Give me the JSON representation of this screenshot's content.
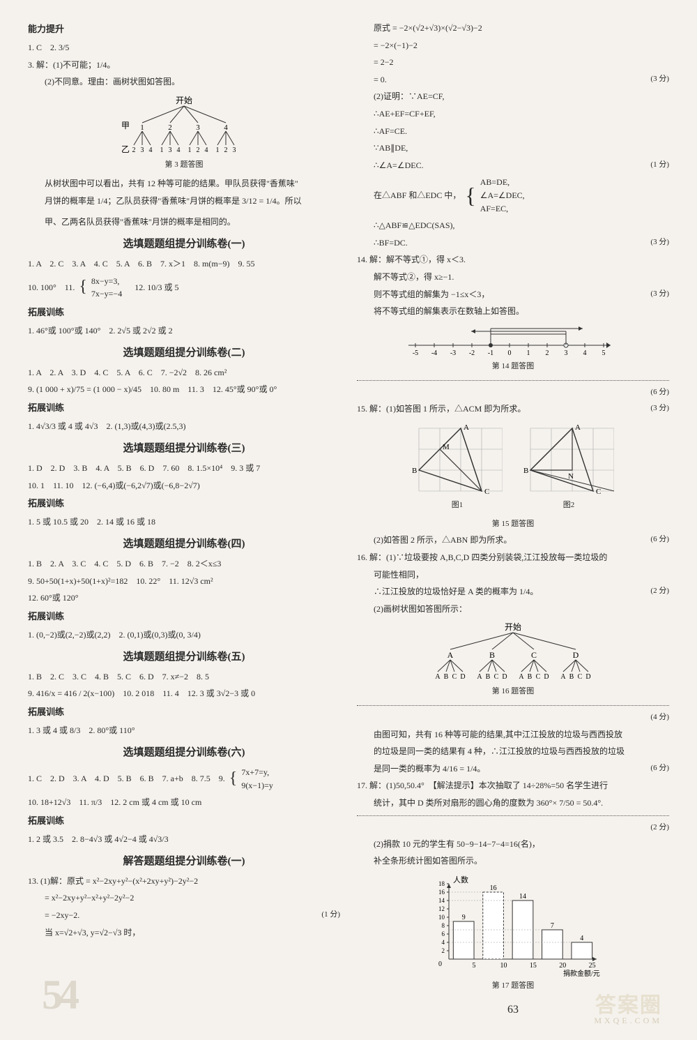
{
  "left": {
    "cap_heading": "能力提升",
    "l1": "1. C　2. 3/5",
    "l3": "3. 解：(1)不可能；1/4。",
    "l3b": "(2)不同意。理由：画树状图如答图。",
    "tree3_cap": "第 3 题答图",
    "tree3_top": "开始",
    "tree3_row1_label": "甲",
    "tree3_row1": [
      "1",
      "2",
      "3",
      "4"
    ],
    "tree3_row2_label": "乙",
    "tree3_row2": [
      "2",
      "3",
      "4",
      "1",
      "3",
      "4",
      "1",
      "2",
      "4",
      "1",
      "2",
      "3"
    ],
    "tree3_text1": "从树状图中可以看出，共有 12 种等可能的结果。甲队员获得\"香蕉味\"",
    "tree3_text2": "月饼的概率是 1/4；乙队员获得\"香蕉味\"月饼的概率是 3/12 = 1/4。所以",
    "tree3_text3": "甲、乙两名队员获得\"香蕉味\"月饼的概率是相同的。",
    "sec1_title": "选填题题组提分训练卷(一)",
    "s1l1": "1. A　2. C　3. A　4. C　5. A　6. B　7. x＞1　8. m(m−9)　9. 55",
    "s1l2_a": "10. 100°　11.",
    "s1l2_sys1": "8x−y=3,",
    "s1l2_sys2": "7x−y=−4",
    "s1l2_b": "　12. 10/3 或 5",
    "s1_ext": "拓展训练",
    "s1e1": "1. 46°或 100°或 140°　2. 2√5 或 2√2 或 2",
    "sec2_title": "选填题题组提分训练卷(二)",
    "s2l1": "1. A　2. A　3. D　4. C　5. A　6. C　7. −2√2　8. 26 cm²",
    "s2l2": "9. (1 000 + x)/75 = (1 000 − x)/45　10. 80 m　11. 3　12. 45°或 90°或 0°",
    "s2_ext": "拓展训练",
    "s2e1": "1. 4√3/3 或 4 或 4√3　2. (1,3)或(4,3)或(2.5,3)",
    "sec3_title": "选填题题组提分训练卷(三)",
    "s3l1": "1. D　2. D　3. B　4. A　5. B　6. D　7. 60　8. 1.5×10⁴　9. 3 或 7",
    "s3l2": "10. 1　11. 10　12. (−6,4)或(−6,2√7)或(−6,8−2√7)",
    "s3_ext": "拓展训练",
    "s3e1": "1. 5 或 10.5 或 20　2. 14 或 16 或 18",
    "sec4_title": "选填题题组提分训练卷(四)",
    "s4l1": "1. B　2. A　3. C　4. C　5. D　6. B　7. −2　8. 2＜x≤3",
    "s4l2": "9. 50+50(1+x)+50(1+x)²=182　10. 22°　11. 12√3 cm²",
    "s4l3": "12. 60°或 120°",
    "s4_ext": "拓展训练",
    "s4e1": "1. (0,−2)或(2,−2)或(2,2)　2. (0,1)或(0,3)或(0, 3/4)",
    "sec5_title": "选填题题组提分训练卷(五)",
    "s5l1": "1. B　2. C　3. C　4. B　5. C　6. D　7. x≠−2　8. 5",
    "s5l2": "9. 416/x = 416 / 2(x−100)　10. 2 018　11. 4　12. 3 或 3√2−3 或 0",
    "s5_ext": "拓展训练",
    "s5e1": "1. 3 或 4 或 8/3　2. 80°或 110°",
    "sec6_title": "选填题题组提分训练卷(六)",
    "s6l1_a": "1. C　2. D　3. A　4. D　5. B　6. B　7. a+b　8. 7.5　9.",
    "s6l1_sys1": "7x+7=y,",
    "s6l1_sys2": "9(x−1)=y",
    "s6l2": "10. 18+12√3　11. π/3　12. 2 cm 或 4 cm 或 10 cm",
    "s6_ext": "拓展训练",
    "s6e1": "1. 2 或 3.5　2. 8−4√3 或 4√2−4 或 4√3/3",
    "sec7_title": "解答题题组提分训练卷(一)",
    "s7l1": "13. (1)解：原式 = x²−2xy+y²−(x²+2xy+y²)−2y²−2",
    "s7l2": "= x²−2xy+y²−x²+y²−2y²−2",
    "s7l3": "= −2xy−2.",
    "s7l3_score": "(1 分)",
    "s7l4": "当 x=√2+√3, y=√2−√3 时，"
  },
  "right": {
    "r1": "原式 = −2×(√2+√3)×(√2−√3)−2",
    "r2": "= −2×(−1)−2",
    "r3": "= 2−2",
    "r4": "= 0.",
    "r4_score": "(3 分)",
    "r5": "(2)证明：∵AE=CF,",
    "r6": "∴AE+EF=CF+EF,",
    "r7": "∴AF=CE.",
    "r8": "∵AB∥DE,",
    "r9": "∴∠A=∠DEC.",
    "r9_score": "(1 分)",
    "r10_a": "在△ABF 和△EDC 中，",
    "r10_sys1": "AB=DE,",
    "r10_sys2": "∠A=∠DEC,",
    "r10_sys3": "AF=EC,",
    "r11": "∴△ABF≌△EDC(SAS),",
    "r12": "∴BF=DC.",
    "r12_score": "(3 分)",
    "r13": "14. 解：解不等式①，得 x＜3.",
    "r14": "解不等式②，得 x≥−1.",
    "r15": "则不等式组的解集为 −1≤x＜3，",
    "r15_score": "(3 分)",
    "r16": "将不等式组的解集表示在数轴上如答图。",
    "numline_ticks": [
      "-5",
      "-4",
      "-3",
      "-2",
      "-1",
      "0",
      "1",
      "2",
      "3",
      "4",
      "5"
    ],
    "numline_cap": "第 14 题答图",
    "r16_score": "(6 分)",
    "r17": "15. 解：(1)如答图 1 所示，△ACM 即为所求。",
    "r17_score": "(3 分)",
    "fig15_labels": {
      "A": "A",
      "B": "B",
      "C": "C",
      "M": "M",
      "N": "N"
    },
    "fig15_cap1": "图1",
    "fig15_cap2": "图2",
    "fig15_cap": "第 15 题答图",
    "r18": "(2)如答图 2 所示，△ABN 即为所求。",
    "r18_score": "(6 分)",
    "r19": "16. 解：(1)∵垃圾要按 A,B,C,D 四类分别装袋,江江投放每一类垃圾的",
    "r20": "可能性相同，",
    "r21": "∴江江投放的垃圾恰好是 A 类的概率为 1/4。",
    "r21_score": "(2 分)",
    "r22": "(2)画树状图如答图所示：",
    "tree16_top": "开始",
    "tree16_row1": [
      "A",
      "B",
      "C",
      "D"
    ],
    "tree16_row2": [
      "A",
      "B",
      "C",
      "D",
      "A",
      "B",
      "C",
      "D",
      "A",
      "B",
      "C",
      "D",
      "A",
      "B",
      "C",
      "D"
    ],
    "tree16_cap": "第 16 题答图",
    "r22_score": "(4 分)",
    "r23": "由图可知，共有 16 种等可能的结果,其中江江投放的垃圾与西西投放",
    "r24": "的垃圾是同一类的结果有 4 种，∴江江投放的垃圾与西西投放的垃圾",
    "r25": "是同一类的概率为 4/16 = 1/4。",
    "r25_score": "(6 分)",
    "r26": "17. 解：(1)50,50.4°　【解法提示】本次抽取了 14÷28%=50 名学生进行",
    "r27": "统计，其中 D 类所对扇形的圆心角的度数为 360°× 7/50 = 50.4°.",
    "r27_score": "(2 分)",
    "r28": "(2)捐款 10 元的学生有 50−9−14−7−4=16(名)，",
    "r29": "补全条形统计图如答图所示。",
    "bar17": {
      "type": "bar",
      "ylabel": "人数",
      "xlabel": "捐款金额/元",
      "categories": [
        "5",
        "10",
        "15",
        "20",
        "25"
      ],
      "values": [
        9,
        16,
        14,
        7,
        4
      ],
      "labels_above": [
        "9",
        "16",
        "14",
        "7",
        "4"
      ],
      "ylim": [
        0,
        18
      ],
      "ytick_step": 2,
      "dashed_index": 1,
      "bar_color": "#ffffff",
      "bar_border": "#333333",
      "dashed_color": "#333333",
      "grid_color": "#999999"
    },
    "bar17_cap": "第 17 题答图"
  },
  "pagenum": "63",
  "wm1": "54",
  "wm2": "答案圈",
  "wm3": "MXQE.COM",
  "colors": {
    "text": "#2a2a2a",
    "bg": "#f5f2ed",
    "light": "#999",
    "watermark": "#ddd7cc"
  }
}
